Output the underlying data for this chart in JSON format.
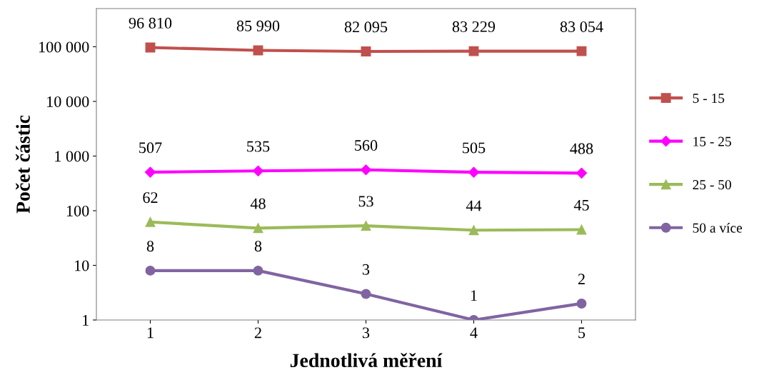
{
  "chart_data": {
    "type": "line",
    "xlabel": "Jednotlivá měření",
    "ylabel": "Počet částic",
    "categories": [
      "1",
      "2",
      "3",
      "4",
      "5"
    ],
    "series": [
      {
        "name": "5 - 15",
        "color": "#c0504d",
        "marker": "square",
        "values": [
          96810,
          85990,
          82095,
          83229,
          83054
        ],
        "value_labels": [
          "96 810",
          "85 990",
          "82 095",
          "83 229",
          "83 054"
        ]
      },
      {
        "name": "15 - 25",
        "color": "#ff00ff",
        "marker": "diamond",
        "values": [
          507,
          535,
          560,
          505,
          488
        ],
        "value_labels": [
          "507",
          "535",
          "560",
          "505",
          "488"
        ]
      },
      {
        "name": "25 - 50",
        "color": "#9bbb59",
        "marker": "triangle",
        "values": [
          62,
          48,
          53,
          44,
          45
        ],
        "value_labels": [
          "62",
          "48",
          "53",
          "44",
          "45"
        ]
      },
      {
        "name": "50 a více",
        "color": "#8064a2",
        "marker": "circle",
        "values": [
          8,
          8,
          3,
          1,
          2
        ],
        "value_labels": [
          "8",
          "8",
          "3",
          "1",
          "2"
        ]
      }
    ],
    "log": "y",
    "ylim": [
      1,
      500000
    ],
    "yticks": [
      1,
      10,
      100,
      {
        "value": 1000,
        "label": "1 000"
      },
      {
        "value": 10000,
        "label": "10 000"
      },
      {
        "value": 100000,
        "label": "100 000"
      }
    ],
    "grid": false,
    "legend": "right",
    "line_style": "solid"
  }
}
